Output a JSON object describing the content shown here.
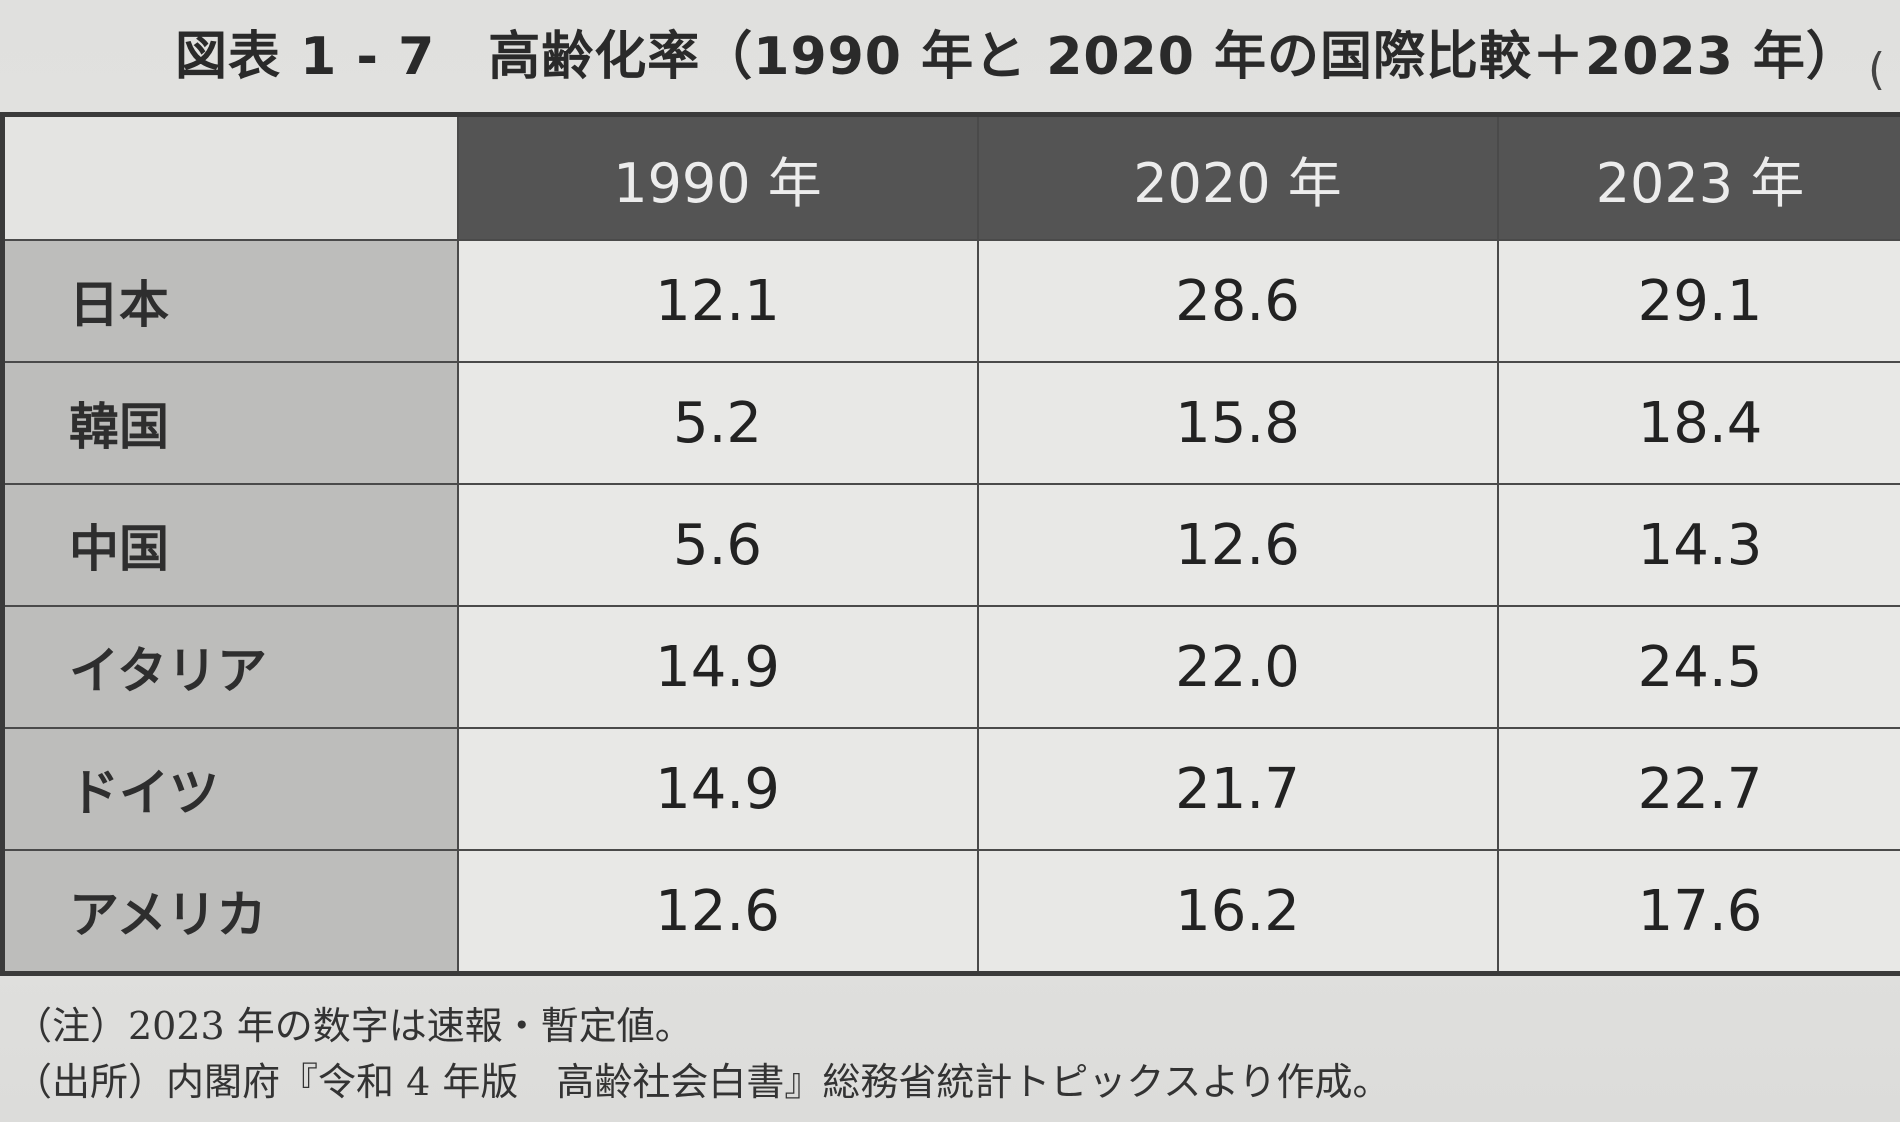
{
  "title": "図表 1 - 7　高齢化率（1990 年と 2020 年の国際比較＋2023 年）",
  "edge_mark": "(",
  "chart_data": {
    "type": "table",
    "title": "図表 1 - 7　高齢化率（1990 年と 2020 年の国際比較＋2023 年）",
    "columns": [
      "1990 年",
      "2020 年",
      "2023 年"
    ],
    "rows": [
      {
        "label": "日本",
        "values": [
          "12.1",
          "28.6",
          "29.1"
        ]
      },
      {
        "label": "韓国",
        "values": [
          "5.2",
          "15.8",
          "18.4"
        ]
      },
      {
        "label": "中国",
        "values": [
          "5.6",
          "12.6",
          "14.3"
        ]
      },
      {
        "label": "イタリア",
        "values": [
          "14.9",
          "22.0",
          "24.5"
        ]
      },
      {
        "label": "ドイツ",
        "values": [
          "14.9",
          "21.7",
          "22.7"
        ]
      },
      {
        "label": "アメリカ",
        "values": [
          "12.6",
          "16.2",
          "17.6"
        ]
      }
    ]
  },
  "notes": {
    "note": "（注）2023 年の数字は速報・暫定値。",
    "source": "（出所）内閣府『令和 4 年版　高齢社会白書』総務省統計トピックスより作成。"
  }
}
